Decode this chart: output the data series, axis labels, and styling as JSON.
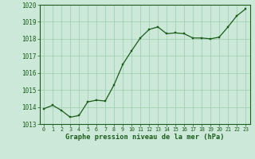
{
  "x": [
    0,
    1,
    2,
    3,
    4,
    5,
    6,
    7,
    8,
    9,
    10,
    11,
    12,
    13,
    14,
    15,
    16,
    17,
    18,
    19,
    20,
    21,
    22,
    23
  ],
  "y": [
    1013.9,
    1014.1,
    1013.8,
    1013.4,
    1013.5,
    1014.3,
    1014.4,
    1014.35,
    1015.3,
    1016.5,
    1017.3,
    1018.05,
    1018.55,
    1018.7,
    1018.3,
    1018.35,
    1018.3,
    1018.05,
    1018.05,
    1018.0,
    1018.1,
    1018.7,
    1019.35,
    1019.75
  ],
  "ylim": [
    1013.0,
    1020.0
  ],
  "xlim": [
    -0.5,
    23.5
  ],
  "yticks": [
    1013,
    1014,
    1015,
    1016,
    1017,
    1018,
    1019,
    1020
  ],
  "xticks": [
    0,
    1,
    2,
    3,
    4,
    5,
    6,
    7,
    8,
    9,
    10,
    11,
    12,
    13,
    14,
    15,
    16,
    17,
    18,
    19,
    20,
    21,
    22,
    23
  ],
  "line_color": "#1a5c1a",
  "marker_color": "#1a5c1a",
  "bg_color": "#cce8d8",
  "grid_color": "#99ccaa",
  "xlabel": "Graphe pression niveau de la mer (hPa)",
  "xlabel_color": "#1a5c1a",
  "tick_color": "#1a5c1a"
}
